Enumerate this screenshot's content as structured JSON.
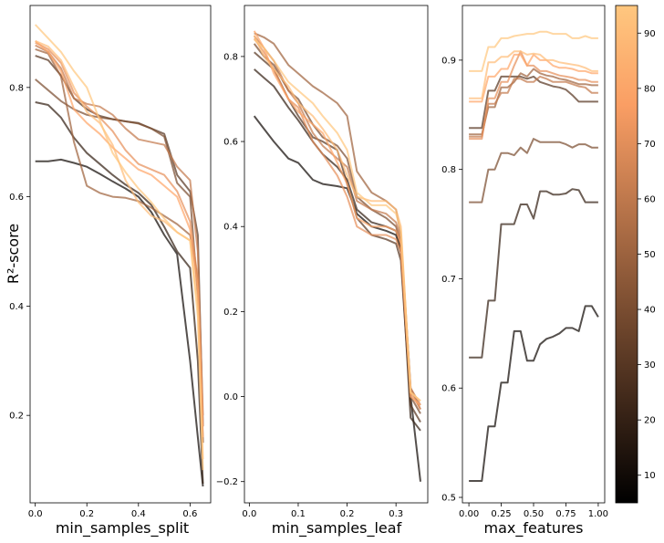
{
  "figure": {
    "ylabel": "R²-score"
  },
  "colorbar": {
    "colormap": "copper",
    "range": [
      5,
      95
    ],
    "ticks": [
      10,
      20,
      30,
      40,
      50,
      60,
      70,
      80,
      90
    ]
  },
  "chart_data": [
    {
      "type": "line",
      "xlabel": "min_samples_split",
      "ylabel": "R²-score",
      "xlim": [
        -0.02,
        0.68
      ],
      "ylim": [
        0.04,
        0.95
      ],
      "xticks": [
        0.0,
        0.2,
        0.4,
        0.6
      ],
      "yticks": [
        0.2,
        0.4,
        0.6,
        0.8
      ],
      "x": [
        0.0,
        0.05,
        0.1,
        0.15,
        0.2,
        0.25,
        0.3,
        0.35,
        0.4,
        0.45,
        0.5,
        0.55,
        0.6,
        0.63,
        0.65
      ],
      "series": [
        {
          "color_value": 10,
          "values": [
            0.665,
            0.665,
            0.668,
            0.662,
            0.655,
            0.642,
            0.628,
            0.615,
            0.6,
            0.572,
            0.53,
            0.495,
            0.3,
            0.16,
            0.07
          ]
        },
        {
          "color_value": 20,
          "values": [
            0.773,
            0.768,
            0.745,
            0.708,
            0.68,
            0.66,
            0.64,
            0.622,
            0.607,
            0.585,
            0.545,
            0.5,
            0.47,
            0.3,
            0.075
          ]
        },
        {
          "color_value": 30,
          "values": [
            0.858,
            0.85,
            0.822,
            0.78,
            0.76,
            0.748,
            0.742,
            0.738,
            0.735,
            0.725,
            0.715,
            0.64,
            0.61,
            0.53,
            0.18
          ]
        },
        {
          "color_value": 40,
          "values": [
            0.815,
            0.795,
            0.775,
            0.76,
            0.75,
            0.745,
            0.742,
            0.738,
            0.734,
            0.725,
            0.71,
            0.625,
            0.6,
            0.42,
            0.15
          ]
        },
        {
          "color_value": 50,
          "values": [
            0.87,
            0.862,
            0.82,
            0.7,
            0.62,
            0.607,
            0.6,
            0.598,
            0.592,
            0.58,
            0.565,
            0.55,
            0.53,
            0.45,
            0.15
          ]
        },
        {
          "color_value": 60,
          "values": [
            0.877,
            0.865,
            0.835,
            0.78,
            0.77,
            0.765,
            0.75,
            0.725,
            0.705,
            0.7,
            0.695,
            0.655,
            0.63,
            0.5,
            0.2
          ]
        },
        {
          "color_value": 70,
          "values": [
            0.882,
            0.87,
            0.845,
            0.79,
            0.765,
            0.745,
            0.72,
            0.685,
            0.66,
            0.65,
            0.64,
            0.61,
            0.555,
            0.45,
            0.18
          ]
        },
        {
          "color_value": 80,
          "values": [
            0.885,
            0.865,
            0.83,
            0.76,
            0.735,
            0.715,
            0.69,
            0.67,
            0.65,
            0.64,
            0.62,
            0.6,
            0.54,
            0.43,
            0.16
          ]
        },
        {
          "color_value": 90,
          "values": [
            0.885,
            0.875,
            0.85,
            0.8,
            0.755,
            0.735,
            0.695,
            0.63,
            0.59,
            0.565,
            0.555,
            0.535,
            0.52,
            0.4,
            0.12
          ]
        },
        {
          "color_value": 95,
          "values": [
            0.915,
            0.89,
            0.865,
            0.83,
            0.8,
            0.74,
            0.68,
            0.645,
            0.615,
            0.59,
            0.56,
            0.535,
            0.52,
            0.38,
            0.1
          ]
        }
      ]
    },
    {
      "type": "line",
      "xlabel": "min_samples_leaf",
      "ylabel": "",
      "xlim": [
        -0.01,
        0.365
      ],
      "ylim": [
        -0.25,
        0.92
      ],
      "xticks": [
        0.0,
        0.1,
        0.2,
        0.3
      ],
      "yticks": [
        -0.2,
        0.0,
        0.2,
        0.4,
        0.6,
        0.8
      ],
      "x": [
        0.01,
        0.03,
        0.05,
        0.08,
        0.1,
        0.13,
        0.15,
        0.18,
        0.2,
        0.22,
        0.25,
        0.28,
        0.3,
        0.31,
        0.33,
        0.35
      ],
      "series": [
        {
          "color_value": 10,
          "values": [
            0.66,
            0.63,
            0.6,
            0.56,
            0.55,
            0.51,
            0.5,
            0.495,
            0.49,
            0.43,
            0.4,
            0.39,
            0.38,
            0.34,
            0.0,
            -0.2
          ]
        },
        {
          "color_value": 20,
          "values": [
            0.77,
            0.75,
            0.73,
            0.68,
            0.65,
            0.6,
            0.57,
            0.54,
            0.51,
            0.44,
            0.41,
            0.4,
            0.39,
            0.35,
            -0.05,
            -0.08
          ]
        },
        {
          "color_value": 30,
          "values": [
            0.81,
            0.79,
            0.77,
            0.7,
            0.66,
            0.61,
            0.6,
            0.58,
            0.5,
            0.42,
            0.38,
            0.37,
            0.36,
            0.32,
            -0.02,
            -0.06
          ]
        },
        {
          "color_value": 40,
          "values": [
            0.83,
            0.8,
            0.78,
            0.72,
            0.7,
            0.64,
            0.61,
            0.59,
            0.56,
            0.47,
            0.44,
            0.42,
            0.4,
            0.36,
            0.0,
            -0.04
          ]
        },
        {
          "color_value": 50,
          "values": [
            0.855,
            0.845,
            0.83,
            0.78,
            0.76,
            0.73,
            0.715,
            0.69,
            0.66,
            0.53,
            0.48,
            0.46,
            0.44,
            0.38,
            0.02,
            -0.03
          ]
        },
        {
          "color_value": 60,
          "values": [
            0.848,
            0.82,
            0.79,
            0.72,
            0.69,
            0.62,
            0.59,
            0.56,
            0.54,
            0.46,
            0.44,
            0.43,
            0.41,
            0.37,
            0.02,
            -0.02
          ]
        },
        {
          "color_value": 70,
          "values": [
            0.842,
            0.81,
            0.77,
            0.7,
            0.68,
            0.6,
            0.57,
            0.52,
            0.47,
            0.4,
            0.38,
            0.38,
            0.37,
            0.34,
            0.01,
            -0.03
          ]
        },
        {
          "color_value": 80,
          "values": [
            0.86,
            0.82,
            0.76,
            0.7,
            0.67,
            0.64,
            0.62,
            0.55,
            0.5,
            0.42,
            0.4,
            0.4,
            0.39,
            0.36,
            0.0,
            -0.02
          ]
        },
        {
          "color_value": 90,
          "values": [
            0.85,
            0.8,
            0.77,
            0.73,
            0.69,
            0.66,
            0.63,
            0.58,
            0.52,
            0.47,
            0.46,
            0.46,
            0.44,
            0.4,
            0.01,
            -0.01
          ]
        },
        {
          "color_value": 95,
          "values": [
            0.84,
            0.82,
            0.79,
            0.74,
            0.72,
            0.69,
            0.66,
            0.62,
            0.58,
            0.48,
            0.45,
            0.45,
            0.43,
            0.39,
            0.01,
            -0.01
          ]
        }
      ]
    },
    {
      "type": "line",
      "xlabel": "max_features",
      "ylabel": "",
      "xlim": [
        -0.05,
        1.05
      ],
      "ylim": [
        0.495,
        0.95
      ],
      "xticks": [
        0.0,
        0.25,
        0.5,
        0.75,
        1.0
      ],
      "xtick_labels": [
        "0.00",
        "0.25",
        "0.50",
        "0.75",
        "1.00"
      ],
      "yticks": [
        0.5,
        0.6,
        0.7,
        0.8,
        0.9
      ],
      "x": [
        0.0,
        0.05,
        0.1,
        0.15,
        0.2,
        0.25,
        0.3,
        0.35,
        0.4,
        0.45,
        0.5,
        0.55,
        0.6,
        0.65,
        0.7,
        0.75,
        0.8,
        0.85,
        0.9,
        0.95,
        1.0
      ],
      "series": [
        {
          "color_value": 10,
          "values": [
            0.515,
            0.515,
            0.515,
            0.565,
            0.565,
            0.605,
            0.605,
            0.652,
            0.652,
            0.625,
            0.625,
            0.64,
            0.645,
            0.647,
            0.65,
            0.655,
            0.655,
            0.652,
            0.675,
            0.675,
            0.665
          ]
        },
        {
          "color_value": 20,
          "values": [
            0.628,
            0.628,
            0.628,
            0.68,
            0.68,
            0.75,
            0.75,
            0.75,
            0.768,
            0.768,
            0.755,
            0.78,
            0.78,
            0.777,
            0.777,
            0.778,
            0.782,
            0.781,
            0.77,
            0.77,
            0.77
          ]
        },
        {
          "color_value": 30,
          "values": [
            0.838,
            0.838,
            0.838,
            0.872,
            0.872,
            0.885,
            0.885,
            0.885,
            0.885,
            0.883,
            0.885,
            0.88,
            0.878,
            0.876,
            0.875,
            0.873,
            0.868,
            0.862,
            0.862,
            0.862,
            0.862
          ]
        },
        {
          "color_value": 40,
          "values": [
            0.77,
            0.77,
            0.77,
            0.8,
            0.8,
            0.815,
            0.815,
            0.813,
            0.82,
            0.815,
            0.828,
            0.825,
            0.825,
            0.825,
            0.825,
            0.823,
            0.82,
            0.823,
            0.823,
            0.82,
            0.82
          ]
        },
        {
          "color_value": 50,
          "values": [
            0.832,
            0.832,
            0.832,
            0.857,
            0.857,
            0.875,
            0.875,
            0.88,
            0.888,
            0.885,
            0.892,
            0.888,
            0.886,
            0.885,
            0.883,
            0.882,
            0.88,
            0.878,
            0.878,
            0.877,
            0.877
          ]
        },
        {
          "color_value": 60,
          "values": [
            0.83,
            0.83,
            0.83,
            0.86,
            0.86,
            0.87,
            0.87,
            0.883,
            0.883,
            0.88,
            0.88,
            0.885,
            0.883,
            0.88,
            0.88,
            0.88,
            0.878,
            0.876,
            0.875,
            0.87,
            0.87
          ]
        },
        {
          "color_value": 70,
          "values": [
            0.828,
            0.828,
            0.828,
            0.865,
            0.865,
            0.88,
            0.88,
            0.895,
            0.908,
            0.895,
            0.895,
            0.89,
            0.89,
            0.888,
            0.886,
            0.885,
            0.884,
            0.882,
            0.882,
            0.88,
            0.88
          ]
        },
        {
          "color_value": 80,
          "values": [
            0.862,
            0.862,
            0.862,
            0.885,
            0.885,
            0.892,
            0.892,
            0.905,
            0.905,
            0.895,
            0.905,
            0.9,
            0.9,
            0.895,
            0.893,
            0.893,
            0.892,
            0.89,
            0.89,
            0.888,
            0.888
          ]
        },
        {
          "color_value": 90,
          "values": [
            0.865,
            0.865,
            0.865,
            0.898,
            0.898,
            0.903,
            0.903,
            0.908,
            0.908,
            0.905,
            0.906,
            0.905,
            0.9,
            0.9,
            0.898,
            0.897,
            0.896,
            0.895,
            0.893,
            0.89,
            0.89
          ]
        },
        {
          "color_value": 95,
          "values": [
            0.89,
            0.89,
            0.89,
            0.912,
            0.912,
            0.92,
            0.92,
            0.922,
            0.923,
            0.924,
            0.924,
            0.926,
            0.926,
            0.924,
            0.924,
            0.924,
            0.92,
            0.92,
            0.922,
            0.92,
            0.92
          ]
        }
      ]
    }
  ]
}
